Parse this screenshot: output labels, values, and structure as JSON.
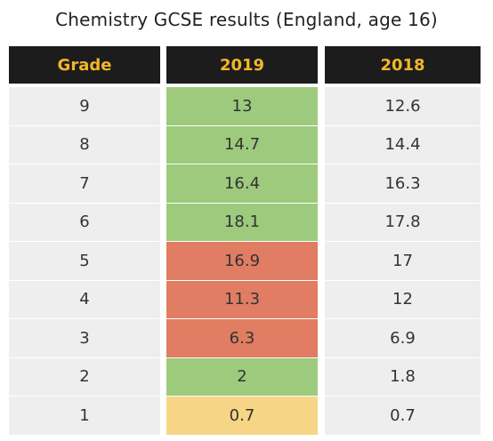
{
  "title": "Chemistry GCSE results (England, age 16)",
  "colors": {
    "header_bg": "#1c1c1c",
    "header_text": "#f2b627",
    "row_bg": "#eeeeee",
    "green": "#9dca7d",
    "red": "#e07d62",
    "yellow": "#f6d686"
  },
  "chart_data": {
    "type": "table",
    "columns": [
      "Grade",
      "2019",
      "2018"
    ],
    "rows": [
      {
        "grade": "9",
        "y2019": "13",
        "y2018": "12.6",
        "highlight": "green"
      },
      {
        "grade": "8",
        "y2019": "14.7",
        "y2018": "14.4",
        "highlight": "green"
      },
      {
        "grade": "7",
        "y2019": "16.4",
        "y2018": "16.3",
        "highlight": "green"
      },
      {
        "grade": "6",
        "y2019": "18.1",
        "y2018": "17.8",
        "highlight": "green"
      },
      {
        "grade": "5",
        "y2019": "16.9",
        "y2018": "17",
        "highlight": "red"
      },
      {
        "grade": "4",
        "y2019": "11.3",
        "y2018": "12",
        "highlight": "red"
      },
      {
        "grade": "3",
        "y2019": "6.3",
        "y2018": "6.9",
        "highlight": "red"
      },
      {
        "grade": "2",
        "y2019": "2",
        "y2018": "1.8",
        "highlight": "green"
      },
      {
        "grade": "1",
        "y2019": "0.7",
        "y2018": "0.7",
        "highlight": "yellow"
      }
    ]
  }
}
